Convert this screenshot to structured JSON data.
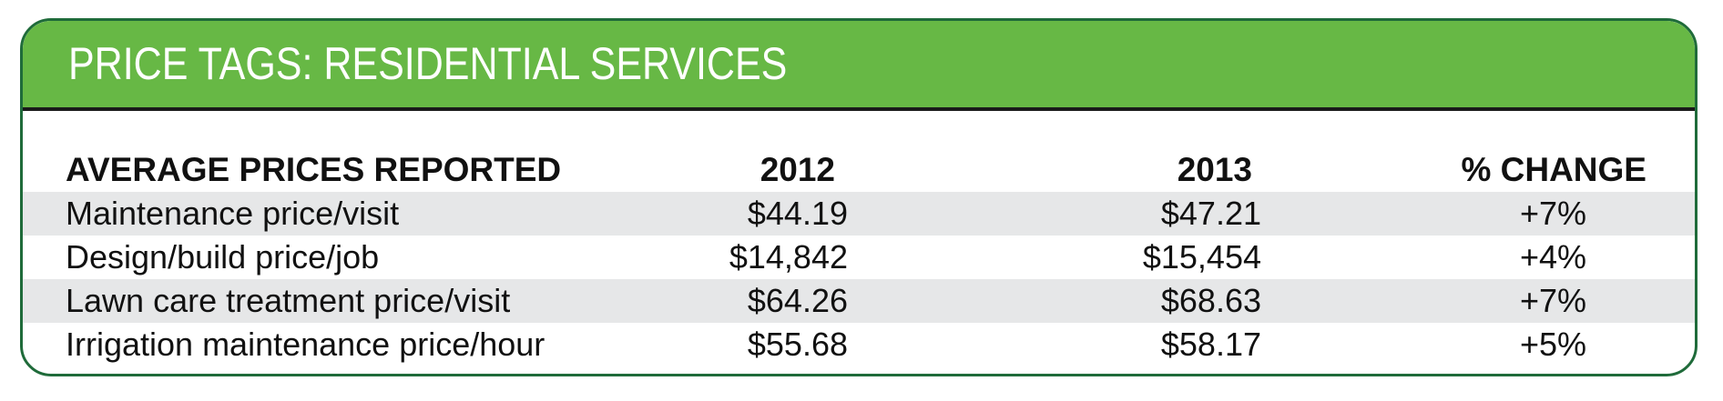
{
  "title": "PRICE TAGS: RESIDENTIAL SERVICES",
  "colors": {
    "header": "#67b845",
    "border": "#1f6b3a",
    "shade": "#e6e7e8"
  },
  "table": {
    "headers": [
      "AVERAGE PRICES REPORTED",
      "2012",
      "2013",
      "% CHANGE"
    ],
    "rows": [
      [
        "Maintenance price/visit",
        "$44.19",
        "$47.21",
        "+7%"
      ],
      [
        "Design/build price/job",
        "$14,842",
        "$15,454",
        "+4%"
      ],
      [
        "Lawn care treatment price/visit",
        "$64.26",
        "$68.63",
        "+7%"
      ],
      [
        "Irrigation maintenance price/hour",
        "$55.68",
        "$58.17",
        "+5%"
      ]
    ]
  }
}
